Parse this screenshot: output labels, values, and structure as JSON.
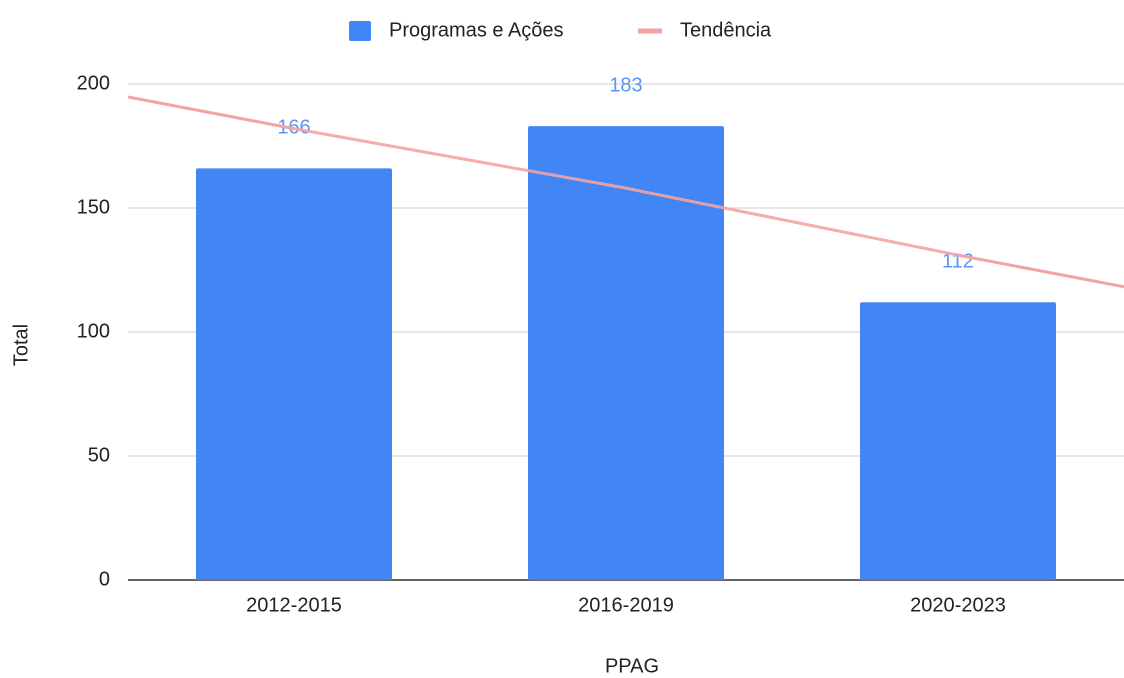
{
  "chart_data": {
    "type": "bar",
    "categories": [
      "2012-2015",
      "2016-2019",
      "2020-2023"
    ],
    "series": [
      {
        "name": "Programas e Ações",
        "color": "#4285f4",
        "values": [
          166,
          183,
          112
        ]
      },
      {
        "name": "Tendência",
        "color": "#f4a3a3",
        "type": "line",
        "values": [
          182,
          158,
          131
        ]
      }
    ],
    "x_label": "PPAG",
    "y_label": "Total",
    "ylim": [
      0,
      200
    ],
    "yticks": [
      0,
      50,
      100,
      150,
      200
    ],
    "grid": true,
    "legend": "top",
    "label_color": "#5b95f2"
  }
}
